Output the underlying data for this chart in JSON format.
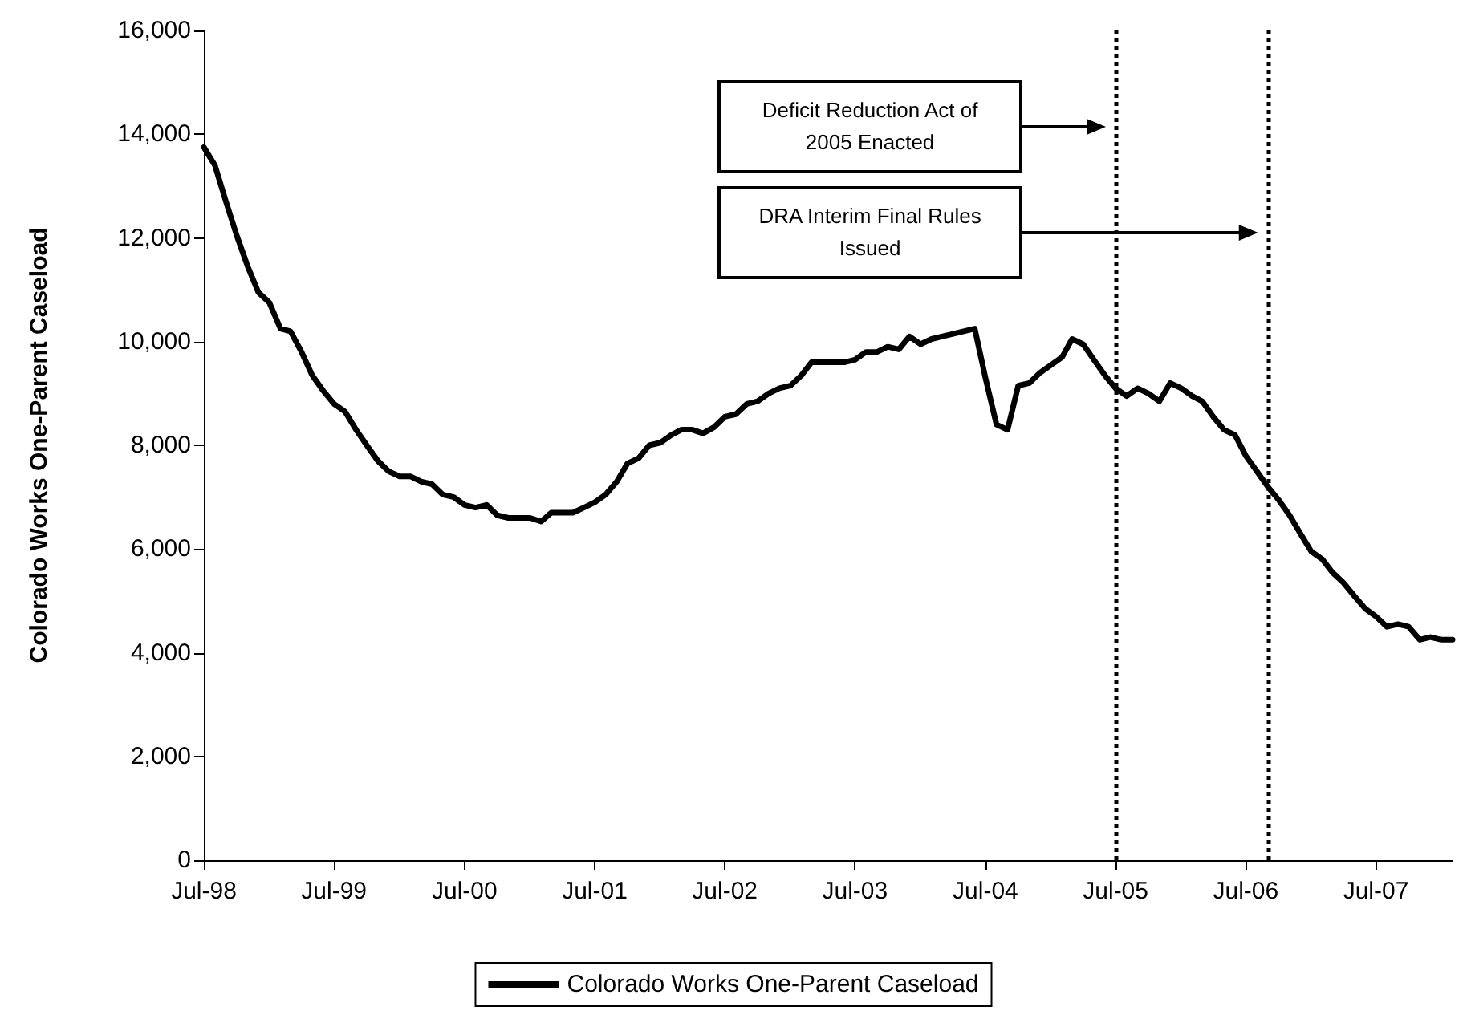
{
  "chart_data": {
    "type": "line",
    "ylabel": "Colorado Works One-Parent Caseload",
    "xlim": [
      "1998-07",
      "2008-02"
    ],
    "xticks": [
      {
        "value": "1998-07",
        "label": "Jul-98"
      },
      {
        "value": "1999-07",
        "label": "Jul-99"
      },
      {
        "value": "2000-07",
        "label": "Jul-00"
      },
      {
        "value": "2001-07",
        "label": "Jul-01"
      },
      {
        "value": "2002-07",
        "label": "Jul-02"
      },
      {
        "value": "2003-07",
        "label": "Jul-03"
      },
      {
        "value": "2004-07",
        "label": "Jul-04"
      },
      {
        "value": "2005-07",
        "label": "Jul-05"
      },
      {
        "value": "2006-07",
        "label": "Jul-06"
      },
      {
        "value": "2007-07",
        "label": "Jul-07"
      }
    ],
    "ylim": [
      0,
      16000
    ],
    "yticks": [
      0,
      {
        "value": 2000,
        "label": "2,000"
      },
      {
        "value": 4000,
        "label": "4,000"
      },
      {
        "value": 6000,
        "label": "6,000"
      },
      {
        "value": 8000,
        "label": "8,000"
      },
      {
        "value": 10000,
        "label": "10,000"
      },
      {
        "value": 12000,
        "label": "12,000"
      },
      {
        "value": 14000,
        "label": "14,000"
      },
      {
        "value": 16000,
        "label": "16,000"
      }
    ],
    "x": [
      "1998-07",
      "1998-08",
      "1998-09",
      "1998-10",
      "1998-11",
      "1998-12",
      "1999-01",
      "1999-02",
      "1999-03",
      "1999-04",
      "1999-05",
      "1999-06",
      "1999-07",
      "1999-08",
      "1999-09",
      "1999-10",
      "1999-11",
      "1999-12",
      "2000-01",
      "2000-02",
      "2000-03",
      "2000-04",
      "2000-05",
      "2000-06",
      "2000-07",
      "2000-08",
      "2000-09",
      "2000-10",
      "2000-11",
      "2000-12",
      "2001-01",
      "2001-02",
      "2001-03",
      "2001-04",
      "2001-05",
      "2001-06",
      "2001-07",
      "2001-08",
      "2001-09",
      "2001-10",
      "2001-11",
      "2001-12",
      "2002-01",
      "2002-02",
      "2002-03",
      "2002-04",
      "2002-05",
      "2002-06",
      "2002-07",
      "2002-08",
      "2002-09",
      "2002-10",
      "2002-11",
      "2002-12",
      "2003-01",
      "2003-02",
      "2003-03",
      "2003-04",
      "2003-05",
      "2003-06",
      "2003-07",
      "2003-08",
      "2003-09",
      "2003-10",
      "2003-11",
      "2003-12",
      "2004-01",
      "2004-02",
      "2004-03",
      "2004-04",
      "2004-05",
      "2004-06",
      "2004-07",
      "2004-08",
      "2004-09",
      "2004-10",
      "2004-11",
      "2004-12",
      "2005-01",
      "2005-02",
      "2005-03",
      "2005-04",
      "2005-05",
      "2005-06",
      "2005-07",
      "2005-08",
      "2005-09",
      "2005-10",
      "2005-11",
      "2005-12",
      "2006-01",
      "2006-02",
      "2006-03",
      "2006-04",
      "2006-05",
      "2006-06",
      "2006-07",
      "2006-08",
      "2006-09",
      "2006-10",
      "2006-11",
      "2006-12",
      "2007-01",
      "2007-02",
      "2007-03",
      "2007-04",
      "2007-05",
      "2007-06",
      "2007-07",
      "2007-08",
      "2007-09",
      "2007-10",
      "2007-11",
      "2007-12",
      "2008-01",
      "2008-02"
    ],
    "series": [
      {
        "name": "Colorado Works One-Parent Caseload",
        "color": "#000000",
        "values": [
          13750,
          13400,
          12700,
          12050,
          11450,
          10950,
          10750,
          10250,
          10200,
          9800,
          9350,
          9050,
          8800,
          8650,
          8300,
          8000,
          7700,
          7500,
          7400,
          7400,
          7300,
          7250,
          7050,
          7000,
          6850,
          6800,
          6850,
          6650,
          6600,
          6600,
          6600,
          6530,
          6700,
          6700,
          6700,
          6800,
          6900,
          7050,
          7300,
          7650,
          7750,
          8000,
          8050,
          8200,
          8300,
          8300,
          8230,
          8350,
          8550,
          8600,
          8800,
          8850,
          9000,
          9100,
          9150,
          9350,
          9600,
          9600,
          9600,
          9600,
          9650,
          9800,
          9800,
          9900,
          9850,
          10100,
          9950,
          10050,
          10100,
          10150,
          10200,
          10250,
          9300,
          8400,
          8300,
          9150,
          9200,
          9400,
          9550,
          9700,
          10050,
          9950,
          9650,
          9350,
          9100,
          8950,
          9100,
          9000,
          8850,
          9200,
          9100,
          8950,
          8850,
          8550,
          8300,
          8200,
          7800,
          7500,
          7200,
          6950,
          6650,
          6300,
          5950,
          5800,
          5550,
          5350,
          5100,
          4850,
          4700,
          4500,
          4550,
          4500,
          4250,
          4300,
          4250,
          4250
        ]
      }
    ],
    "ref_lines": [
      {
        "axis": "x",
        "value": "2005-07",
        "color": "#000000",
        "line_style": "dotted"
      },
      {
        "axis": "x",
        "value": "2006-09",
        "color": "#000000",
        "line_style": "dotted"
      }
    ],
    "annotations": [
      "Deficit Reduction Act of 2005 Enacted",
      "DRA Interim Final Rules Issued"
    ],
    "line_style": "solid",
    "marker": "none",
    "grid": false,
    "legend": "bottom"
  }
}
